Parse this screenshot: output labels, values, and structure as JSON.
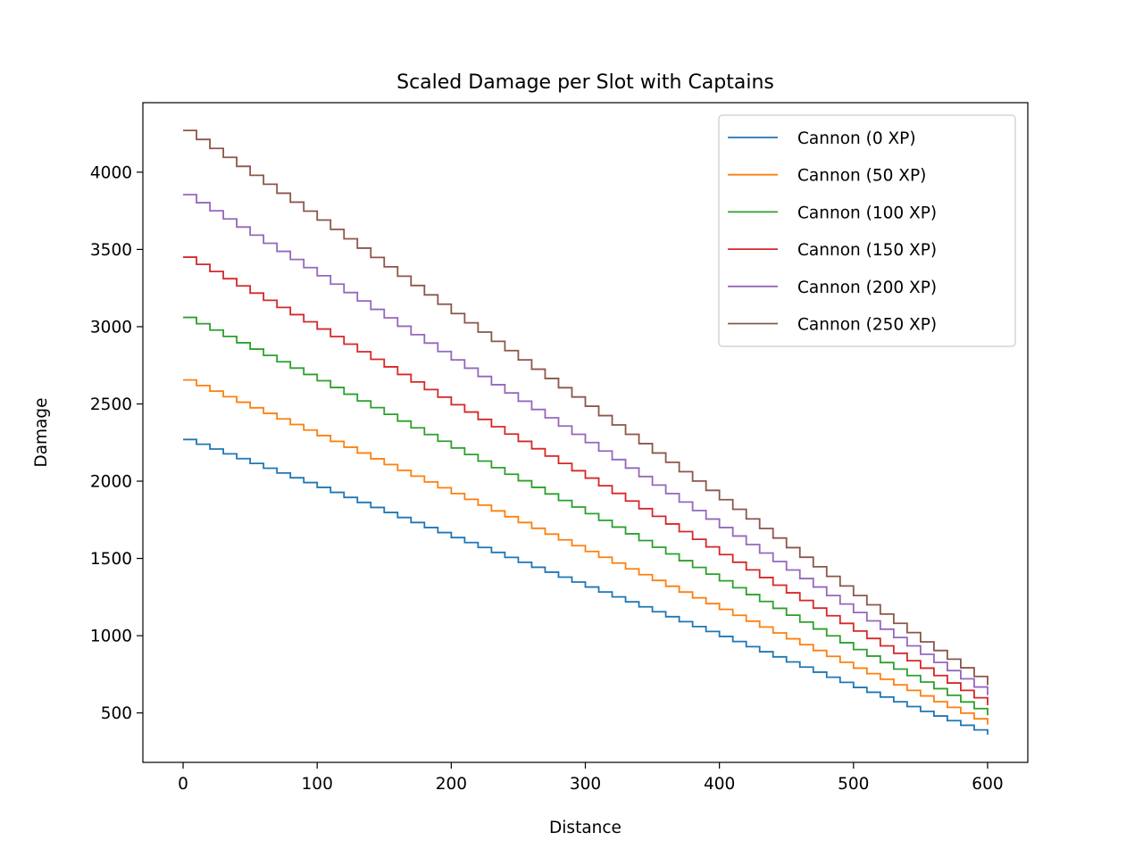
{
  "chart_data": {
    "type": "line",
    "title": "Scaled Damage per Slot with Captains",
    "xlabel": "Distance",
    "ylabel": "Damage",
    "xlim": [
      -30,
      630
    ],
    "ylim": [
      180,
      4450
    ],
    "xticks": [
      0,
      100,
      200,
      300,
      400,
      500,
      600
    ],
    "yticks": [
      500,
      1000,
      1500,
      2000,
      2500,
      3000,
      3500,
      4000
    ],
    "legend_position": "upper right",
    "grid": false,
    "step_width": 10,
    "series": [
      {
        "name": "Cannon (0 XP)",
        "color": "#1f77b4",
        "x": [
          0,
          100,
          200,
          300,
          400,
          500,
          550,
          600
        ],
        "y": [
          2270,
          1960,
          1635,
          1315,
          995,
          665,
          510,
          360
        ]
      },
      {
        "name": "Cannon (50 XP)",
        "color": "#ff7f0e",
        "x": [
          0,
          100,
          200,
          300,
          400,
          500,
          550,
          600
        ],
        "y": [
          2655,
          2295,
          1920,
          1545,
          1170,
          790,
          610,
          425
        ]
      },
      {
        "name": "Cannon (100 XP)",
        "color": "#2ca02c",
        "x": [
          0,
          100,
          200,
          300,
          400,
          500,
          550,
          600
        ],
        "y": [
          3060,
          2650,
          2215,
          1790,
          1355,
          910,
          700,
          485
        ]
      },
      {
        "name": "Cannon (150 XP)",
        "color": "#d62728",
        "x": [
          0,
          100,
          200,
          300,
          400,
          500,
          550,
          600
        ],
        "y": [
          3450,
          2985,
          2495,
          2020,
          1525,
          1030,
          790,
          550
        ]
      },
      {
        "name": "Cannon (200 XP)",
        "color": "#9467bd",
        "x": [
          0,
          100,
          200,
          300,
          400,
          500,
          550,
          600
        ],
        "y": [
          3855,
          3330,
          2785,
          2250,
          1700,
          1150,
          880,
          615
        ]
      },
      {
        "name": "Cannon (250 XP)",
        "color": "#8c564b",
        "x": [
          0,
          100,
          200,
          300,
          400,
          500,
          550,
          600
        ],
        "y": [
          4270,
          3690,
          3085,
          2485,
          1880,
          1260,
          960,
          680
        ]
      }
    ]
  }
}
